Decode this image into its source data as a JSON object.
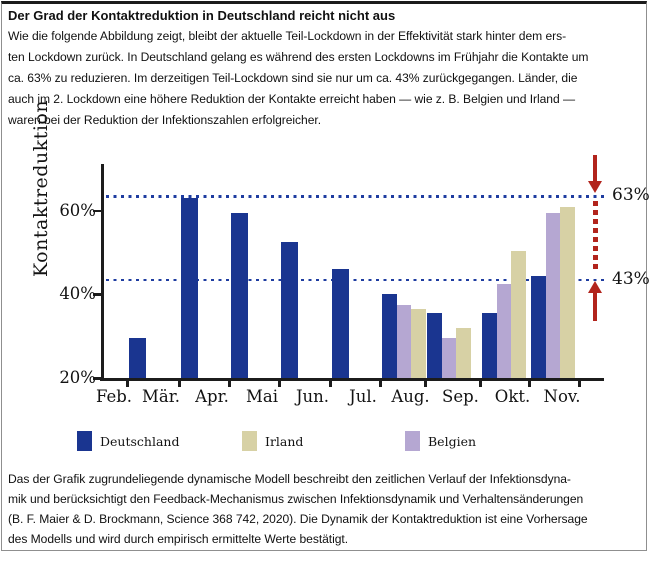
{
  "header": {
    "title": "Der Grad der Kontaktreduktion in Deutschland reicht nicht aus",
    "intro_lines": [
      "Wie die folgende Abbildung zeigt, bleibt der aktuelle Teil-Lockdown in der Effektivität stark hinter dem ers-",
      "ten Lockdown zurück. In Deutschland gelang es während des ersten Lockdowns im Frühjahr die Kontakte um",
      "ca. 63% zu reduzieren. Im derzeitigen Teil-Lockdown sind sie nur um ca. 43% zurückgegangen. Länder, die",
      "auch im 2. Lockdown eine höhere Reduktion der Kontakte erreicht haben — wie z. B. Belgien und Irland —",
      "waren bei der Reduktion der Infektionszahlen erfolgreicher."
    ]
  },
  "chart_data": {
    "type": "bar",
    "title": "",
    "xlabel": "",
    "ylabel": "Kontaktreduktion",
    "ylim": [
      20,
      70
    ],
    "grid": false,
    "legend_position": "below",
    "y_ticks": [
      {
        "value": 60,
        "label": "60%"
      },
      {
        "value": 40,
        "label": "40%"
      },
      {
        "value": 20,
        "label": "20%"
      }
    ],
    "categories": [
      "Feb.",
      "Mär.",
      "Apr.",
      "Mai",
      "Jun.",
      "Jul.",
      "Aug.",
      "Sep.",
      "Okt.",
      "Nov."
    ],
    "series": [
      {
        "name": "Deutschland",
        "color": "#1a3590",
        "values": [
          null,
          29.5,
          63,
          59.5,
          52.5,
          46,
          40,
          35.5,
          35.5,
          44.5
        ]
      },
      {
        "name": "Belgien",
        "color": "#b5a7d2",
        "values": [
          null,
          null,
          null,
          null,
          null,
          null,
          37.5,
          29.5,
          42.5,
          59.5
        ]
      },
      {
        "name": "Irland",
        "color": "#d7d1a5",
        "values": [
          null,
          null,
          null,
          null,
          null,
          null,
          36.5,
          32,
          50.5,
          61
        ]
      }
    ],
    "bar_order_in_group": [
      "Deutschland",
      "Belgien",
      "Irland"
    ],
    "reference_lines": [
      {
        "value": 63,
        "label": "63%"
      },
      {
        "value": 43,
        "label": "43%"
      }
    ],
    "reference_line_color": "#1e3ca0",
    "annotation_arrow_color": "#b2241c"
  },
  "legend": {
    "items": [
      {
        "label": "Deutschland",
        "color": "#1a3590"
      },
      {
        "label": "Irland",
        "color": "#d7d1a5"
      },
      {
        "label": "Belgien",
        "color": "#b5a7d2"
      }
    ]
  },
  "caption": {
    "lines": [
      "Das der Grafik zugrundeliegende dynamische Modell beschreibt den zeitlichen Verlauf der Infektionsdyna-",
      "mik und berücksichtigt den Feedback-Mechanismus zwischen Infektionsdynamik und Verhaltensänderungen",
      "(B. F. Maier & D. Brockmann, Science 368 742, 2020). Die Dynamik der Kontaktreduktion ist eine Vorhersage",
      "des Modells und wird durch empirisch ermittelte Werte bestätigt."
    ]
  }
}
